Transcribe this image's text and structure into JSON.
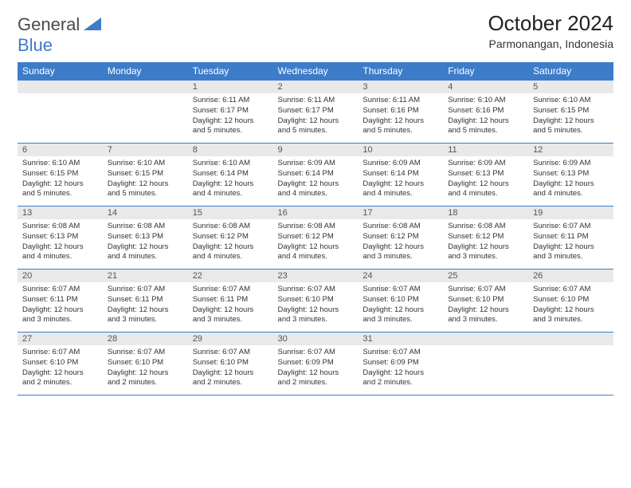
{
  "logo": {
    "word1": "General",
    "word2": "Blue"
  },
  "title": "October 2024",
  "location": "Parmonangan, Indonesia",
  "colors": {
    "accent": "#3d7cc9",
    "header_bg": "#3d7cc9",
    "header_text": "#ffffff",
    "daynum_bg": "#e9e9e9",
    "body_text": "#333333",
    "logo_gray": "#4a4a4a",
    "logo_blue": "#3d7cc9",
    "background": "#ffffff"
  },
  "day_names": [
    "Sunday",
    "Monday",
    "Tuesday",
    "Wednesday",
    "Thursday",
    "Friday",
    "Saturday"
  ],
  "weeks": [
    [
      null,
      null,
      {
        "n": "1",
        "sr": "6:11 AM",
        "ss": "6:17 PM",
        "dl": "12 hours and 5 minutes."
      },
      {
        "n": "2",
        "sr": "6:11 AM",
        "ss": "6:17 PM",
        "dl": "12 hours and 5 minutes."
      },
      {
        "n": "3",
        "sr": "6:11 AM",
        "ss": "6:16 PM",
        "dl": "12 hours and 5 minutes."
      },
      {
        "n": "4",
        "sr": "6:10 AM",
        "ss": "6:16 PM",
        "dl": "12 hours and 5 minutes."
      },
      {
        "n": "5",
        "sr": "6:10 AM",
        "ss": "6:15 PM",
        "dl": "12 hours and 5 minutes."
      }
    ],
    [
      {
        "n": "6",
        "sr": "6:10 AM",
        "ss": "6:15 PM",
        "dl": "12 hours and 5 minutes."
      },
      {
        "n": "7",
        "sr": "6:10 AM",
        "ss": "6:15 PM",
        "dl": "12 hours and 5 minutes."
      },
      {
        "n": "8",
        "sr": "6:10 AM",
        "ss": "6:14 PM",
        "dl": "12 hours and 4 minutes."
      },
      {
        "n": "9",
        "sr": "6:09 AM",
        "ss": "6:14 PM",
        "dl": "12 hours and 4 minutes."
      },
      {
        "n": "10",
        "sr": "6:09 AM",
        "ss": "6:14 PM",
        "dl": "12 hours and 4 minutes."
      },
      {
        "n": "11",
        "sr": "6:09 AM",
        "ss": "6:13 PM",
        "dl": "12 hours and 4 minutes."
      },
      {
        "n": "12",
        "sr": "6:09 AM",
        "ss": "6:13 PM",
        "dl": "12 hours and 4 minutes."
      }
    ],
    [
      {
        "n": "13",
        "sr": "6:08 AM",
        "ss": "6:13 PM",
        "dl": "12 hours and 4 minutes."
      },
      {
        "n": "14",
        "sr": "6:08 AM",
        "ss": "6:13 PM",
        "dl": "12 hours and 4 minutes."
      },
      {
        "n": "15",
        "sr": "6:08 AM",
        "ss": "6:12 PM",
        "dl": "12 hours and 4 minutes."
      },
      {
        "n": "16",
        "sr": "6:08 AM",
        "ss": "6:12 PM",
        "dl": "12 hours and 4 minutes."
      },
      {
        "n": "17",
        "sr": "6:08 AM",
        "ss": "6:12 PM",
        "dl": "12 hours and 3 minutes."
      },
      {
        "n": "18",
        "sr": "6:08 AM",
        "ss": "6:12 PM",
        "dl": "12 hours and 3 minutes."
      },
      {
        "n": "19",
        "sr": "6:07 AM",
        "ss": "6:11 PM",
        "dl": "12 hours and 3 minutes."
      }
    ],
    [
      {
        "n": "20",
        "sr": "6:07 AM",
        "ss": "6:11 PM",
        "dl": "12 hours and 3 minutes."
      },
      {
        "n": "21",
        "sr": "6:07 AM",
        "ss": "6:11 PM",
        "dl": "12 hours and 3 minutes."
      },
      {
        "n": "22",
        "sr": "6:07 AM",
        "ss": "6:11 PM",
        "dl": "12 hours and 3 minutes."
      },
      {
        "n": "23",
        "sr": "6:07 AM",
        "ss": "6:10 PM",
        "dl": "12 hours and 3 minutes."
      },
      {
        "n": "24",
        "sr": "6:07 AM",
        "ss": "6:10 PM",
        "dl": "12 hours and 3 minutes."
      },
      {
        "n": "25",
        "sr": "6:07 AM",
        "ss": "6:10 PM",
        "dl": "12 hours and 3 minutes."
      },
      {
        "n": "26",
        "sr": "6:07 AM",
        "ss": "6:10 PM",
        "dl": "12 hours and 3 minutes."
      }
    ],
    [
      {
        "n": "27",
        "sr": "6:07 AM",
        "ss": "6:10 PM",
        "dl": "12 hours and 2 minutes."
      },
      {
        "n": "28",
        "sr": "6:07 AM",
        "ss": "6:10 PM",
        "dl": "12 hours and 2 minutes."
      },
      {
        "n": "29",
        "sr": "6:07 AM",
        "ss": "6:10 PM",
        "dl": "12 hours and 2 minutes."
      },
      {
        "n": "30",
        "sr": "6:07 AM",
        "ss": "6:09 PM",
        "dl": "12 hours and 2 minutes."
      },
      {
        "n": "31",
        "sr": "6:07 AM",
        "ss": "6:09 PM",
        "dl": "12 hours and 2 minutes."
      },
      null,
      null
    ]
  ],
  "labels": {
    "sunrise": "Sunrise:",
    "sunset": "Sunset:",
    "daylight": "Daylight:"
  }
}
